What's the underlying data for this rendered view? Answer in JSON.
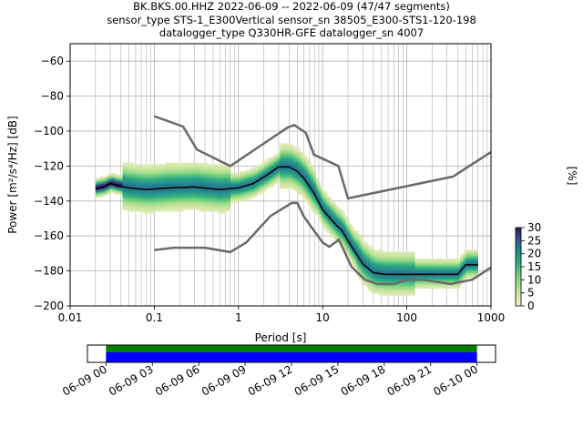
{
  "title": {
    "line1": "BK.BKS.00.HHZ   2022-06-09 -- 2022-06-09  (47/47 segments)",
    "line2": "sensor_type STS-1_E300Vertical sensor_sn 38505_E300-STS1-120-198",
    "line3": "datalogger_type Q330HR-GFE datalogger_sn 4007"
  },
  "chart_data": [
    {
      "type": "heatmap",
      "xlabel": "Period [s]",
      "ylabel": "Power [m²/s⁴/Hz] [dB]",
      "x_scale": "log",
      "xlim": [
        0.01,
        1000
      ],
      "ylim": [
        -200,
        -50
      ],
      "x_ticks": [
        0.01,
        0.1,
        1,
        10,
        100,
        1000
      ],
      "x_tick_labels": [
        "0.01",
        "0.1",
        "1",
        "10",
        "100",
        "1000"
      ],
      "y_ticks": [
        -200,
        -180,
        -160,
        -140,
        -120,
        -100,
        -80,
        -60
      ],
      "y_tick_labels": [
        "−200",
        "−180",
        "−160",
        "−140",
        "−120",
        "−100",
        "−80",
        "−60"
      ],
      "grid": true,
      "noise_models": [
        {
          "name": "high",
          "x": [
            0.1,
            0.22,
            0.32,
            0.8,
            3.8,
            4.6,
            6.3,
            7.9,
            15.4,
            20,
            354.8,
            1000
          ],
          "y": [
            -91.5,
            -97.4,
            -110.5,
            -120,
            -98,
            -96.5,
            -101,
            -113.5,
            -120,
            -138.5,
            -126,
            -112
          ]
        },
        {
          "name": "low",
          "x": [
            0.1,
            0.17,
            0.4,
            0.8,
            1.24,
            2.4,
            4.3,
            5,
            6,
            10,
            12,
            15.6,
            21.9,
            31.6,
            45,
            70,
            101,
            154,
            328,
            600,
            1000
          ],
          "y": [
            -168,
            -166.7,
            -166.7,
            -169.2,
            -163.7,
            -148.6,
            -141.1,
            -141.1,
            -149,
            -163.8,
            -166.2,
            -162.1,
            -177.5,
            -185,
            -187.5,
            -187.5,
            -185,
            -185,
            -187.5,
            -185,
            -178
          ]
        }
      ],
      "mean_curve": {
        "x": [
          0.02,
          0.025,
          0.03,
          0.035,
          0.05,
          0.08,
          0.15,
          0.3,
          0.6,
          1,
          1.5,
          2.2,
          3,
          4,
          5,
          6,
          8,
          10,
          14,
          17,
          22,
          30,
          40,
          55,
          80,
          110,
          200,
          400,
          500,
          700
        ],
        "y": [
          -133,
          -132,
          -130,
          -131,
          -132.5,
          -133.5,
          -132.5,
          -132,
          -133.5,
          -132.5,
          -130,
          -125,
          -120.5,
          -120.5,
          -123,
          -127,
          -136,
          -145,
          -153,
          -157,
          -166,
          -176,
          -181,
          -182,
          -182,
          -182,
          -182,
          -182,
          -176.5,
          -176.5
        ]
      },
      "colorbar": {
        "label": "[%]",
        "min": 0,
        "max": 30,
        "ticks": [
          0,
          5,
          10,
          15,
          20,
          25,
          30
        ],
        "tick_labels": [
          "0",
          "5",
          "10",
          "15",
          "20",
          "25",
          "30"
        ],
        "colormap": "pqlx"
      }
    },
    {
      "type": "timeline",
      "segments_label": "47/47 segments",
      "x_tick_labels": [
        "06-09 00",
        "06-09 03",
        "06-09 06",
        "06-09 09",
        "06-09 12",
        "06-09 15",
        "06-09 18",
        "06-09 21",
        "06-10 00"
      ],
      "x_tick_hours": [
        0,
        3,
        6,
        9,
        12,
        15,
        18,
        21,
        24
      ],
      "xlim_hours": [
        -1.2,
        25.2
      ],
      "coverage_hours": [
        0,
        24
      ],
      "colors": {
        "data": "#0000ff",
        "used": "#008000"
      }
    }
  ]
}
